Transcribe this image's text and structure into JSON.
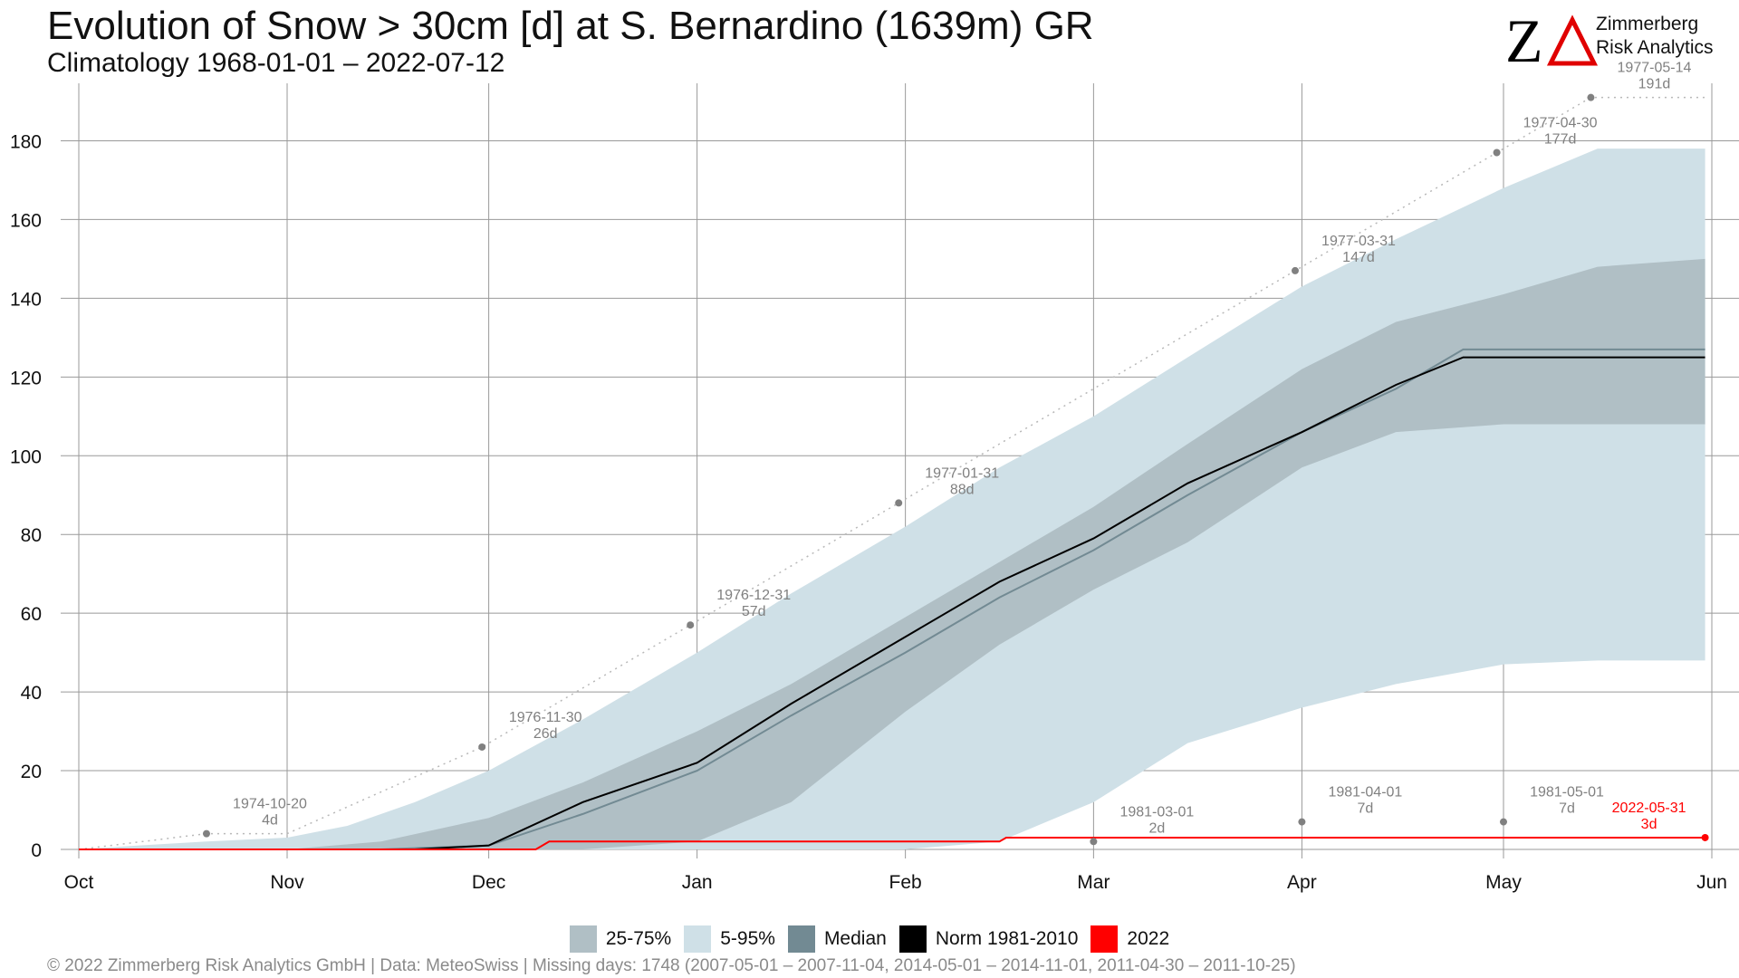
{
  "header": {
    "title": "Evolution of Snow > 30cm [d] at S. Bernardino (1639m) GR",
    "subtitle": "Climatology 1968-01-01 – 2022-07-12"
  },
  "logo": {
    "mark": "ZA",
    "line1": "Zimmerberg",
    "line2": "Risk Analytics",
    "icon": "za-logo-icon"
  },
  "legend": {
    "items": [
      {
        "label": "25-75%",
        "color": "#b0bfc5"
      },
      {
        "label": "5-95%",
        "color": "#cfe0e7"
      },
      {
        "label": "Median",
        "color": "#728a93"
      },
      {
        "label": "Norm 1981-2010",
        "color": "#000000"
      },
      {
        "label": "2022",
        "color": "#ff0000"
      }
    ]
  },
  "footer": {
    "text": "©  2022 Zimmerberg Risk Analytics GmbH | Data: MeteoSwiss | Missing days: 1748 (2007-05-01 – 2007-11-04, 2014-05-01 – 2014-11-01, 2011-04-30 – 2011-10-25)"
  },
  "chart_data": {
    "type": "area",
    "xlabel": "",
    "ylabel": "",
    "xlim": [
      "10-01",
      "05-31"
    ],
    "ylim": [
      0,
      190
    ],
    "grid": true,
    "legend_position": "bottom",
    "x_ticks": [
      "Oct",
      "Nov",
      "Dec",
      "Jan",
      "Feb",
      "Mar",
      "Apr",
      "May",
      "Jun"
    ],
    "y_ticks": [
      0,
      20,
      40,
      60,
      80,
      100,
      120,
      140,
      160,
      180
    ],
    "colors": {
      "band_5_95": "#cfe0e7",
      "band_25_75": "#b0bfc5",
      "median": "#728a93",
      "norm": "#000000",
      "current": "#ff0000",
      "record": "#808080",
      "grid": "#999999"
    },
    "series": [
      {
        "name": "5-95%",
        "x": [
          "10-01",
          "10-10",
          "10-20",
          "11-01",
          "11-10",
          "11-20",
          "12-01",
          "12-15",
          "01-01",
          "01-15",
          "02-01",
          "02-15",
          "03-01",
          "03-15",
          "04-01",
          "04-15",
          "05-01",
          "05-15",
          "05-31"
        ],
        "upper": [
          0,
          1,
          2,
          3,
          6,
          12,
          20,
          33,
          50,
          65,
          82,
          97,
          110,
          125,
          143,
          155,
          168,
          178,
          178
        ],
        "lower": [
          0,
          0,
          0,
          0,
          0,
          0,
          0,
          0,
          0,
          0,
          0,
          2,
          12,
          27,
          36,
          42,
          47,
          48,
          48
        ]
      },
      {
        "name": "25-75%",
        "x": [
          "10-01",
          "11-01",
          "11-15",
          "12-01",
          "12-15",
          "01-01",
          "01-15",
          "02-01",
          "02-15",
          "03-01",
          "03-15",
          "04-01",
          "04-15",
          "05-01",
          "05-15",
          "05-31"
        ],
        "upper": [
          0,
          0,
          2,
          8,
          17,
          30,
          42,
          59,
          73,
          87,
          103,
          122,
          134,
          141,
          148,
          150
        ],
        "lower": [
          0,
          0,
          0,
          0,
          0,
          2,
          12,
          35,
          52,
          66,
          78,
          97,
          106,
          108,
          108,
          108
        ]
      },
      {
        "name": "Median",
        "x": [
          "10-01",
          "11-15",
          "12-01",
          "12-15",
          "01-01",
          "01-15",
          "02-01",
          "02-15",
          "03-01",
          "03-15",
          "04-01",
          "04-15",
          "04-25",
          "05-31"
        ],
        "values": [
          0,
          0,
          1,
          9,
          20,
          34,
          50,
          64,
          76,
          90,
          106,
          117,
          127,
          127
        ]
      },
      {
        "name": "Norm 1981-2010",
        "x": [
          "10-01",
          "11-20",
          "12-01",
          "12-15",
          "01-01",
          "01-15",
          "02-01",
          "02-15",
          "03-01",
          "03-15",
          "04-01",
          "04-15",
          "04-25",
          "05-31"
        ],
        "values": [
          0,
          0,
          1,
          12,
          22,
          37,
          54,
          68,
          79,
          93,
          106,
          118,
          125,
          125
        ]
      },
      {
        "name": "2022",
        "x": [
          "10-01",
          "12-08",
          "12-10",
          "02-15",
          "02-16",
          "05-31"
        ],
        "values": [
          0,
          0,
          2,
          2,
          3,
          3
        ]
      }
    ],
    "record_line": {
      "x": [
        "10-01",
        "10-20",
        "11-01",
        "11-30",
        "12-31",
        "01-31",
        "03-31",
        "04-30",
        "05-14",
        "05-31"
      ],
      "values": [
        0,
        4,
        4,
        26,
        57,
        88,
        147,
        177,
        191,
        191
      ]
    },
    "annotations": [
      {
        "date": "1974-10-20",
        "days": "4d",
        "x": "10-20",
        "y": 4
      },
      {
        "date": "1976-11-30",
        "days": "26d",
        "x": "11-30",
        "y": 26
      },
      {
        "date": "1976-12-31",
        "days": "57d",
        "x": "12-31",
        "y": 57
      },
      {
        "date": "1977-01-31",
        "days": "88d",
        "x": "01-31",
        "y": 88
      },
      {
        "date": "1977-03-31",
        "days": "147d",
        "x": "03-31",
        "y": 147
      },
      {
        "date": "1977-04-30",
        "days": "177d",
        "x": "04-30",
        "y": 177
      },
      {
        "date": "1977-05-14",
        "days": "191d",
        "x": "05-14",
        "y": 191
      },
      {
        "date": "1981-03-01",
        "days": "2d",
        "x": "03-01",
        "y": 2
      },
      {
        "date": "1981-04-01",
        "days": "7d",
        "x": "04-01",
        "y": 7
      },
      {
        "date": "1981-05-01",
        "days": "7d",
        "x": "05-01",
        "y": 7
      },
      {
        "date": "2022-05-31",
        "days": "3d",
        "x": "05-31",
        "y": 3,
        "highlight": true
      }
    ]
  }
}
